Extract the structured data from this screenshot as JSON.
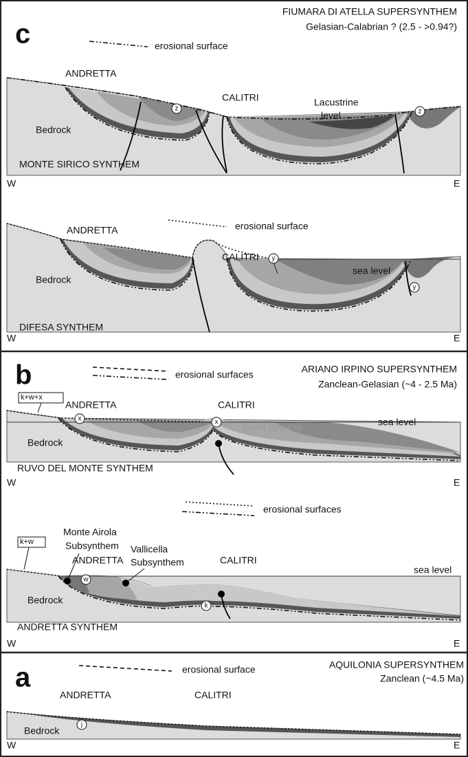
{
  "panels": [
    {
      "letter": "c",
      "title": "FIUMARA DI ATELLA SUPERSYNTHEM",
      "age": "Gelasian-Calabrian ? (2.5 - >0.94?)",
      "legend": "erosional surface",
      "sections": [
        {
          "labels": [
            "ANDRETTA",
            "CALITRI",
            "Lacustrine",
            "level",
            "Bedrock"
          ],
          "markers": [
            "z",
            "z"
          ],
          "synthem": "MONTE SIRICO SYNTHEM",
          "west": "W",
          "east": "E"
        },
        {
          "legend": "erosional surface",
          "labels": [
            "ANDRETTA",
            "CALITRI",
            "sea level",
            "Bedrock"
          ],
          "markers": [
            "y",
            "y"
          ],
          "synthem": "DIFESA SYNTHEM",
          "west": "W",
          "east": "E"
        }
      ]
    },
    {
      "letter": "b",
      "title": "ARIANO IRPINO SUPERSYNTHEM",
      "age": "Zanclean-Gelasian (~4 - 2.5 Ma)",
      "legend": "erosional surfaces",
      "sections": [
        {
          "key": "k+w+x",
          "labels": [
            "ANDRETTA",
            "CALITRI",
            "Serra Spinella",
            "sea level",
            "Bedrock"
          ],
          "markers": [
            "x",
            "x"
          ],
          "synthem": "RUVO DEL MONTE SYNTHEM",
          "west": "W",
          "east": "E"
        },
        {
          "legend": "erosional surfaces",
          "key": "k+w",
          "labels": [
            "ANDRETTA",
            "CALITRI",
            "sea level",
            "Bedrock",
            "Monte Airola",
            "Subsynthem",
            "Vallicella",
            "Subsynthem"
          ],
          "markers": [
            "w",
            "k"
          ],
          "synthem": "ANDRETTA SYNTHEM",
          "west": "W",
          "east": "E"
        }
      ]
    },
    {
      "letter": "a",
      "title": "AQUILONIA SUPERSYNTHEM",
      "age": "Zanclean (~4.5 Ma)",
      "legend": "erosional surface",
      "sections": [
        {
          "labels": [
            "ANDRETTA",
            "CALITRI",
            "Bedrock"
          ],
          "markers": [
            "j"
          ],
          "west": "W",
          "east": "E"
        }
      ]
    }
  ]
}
